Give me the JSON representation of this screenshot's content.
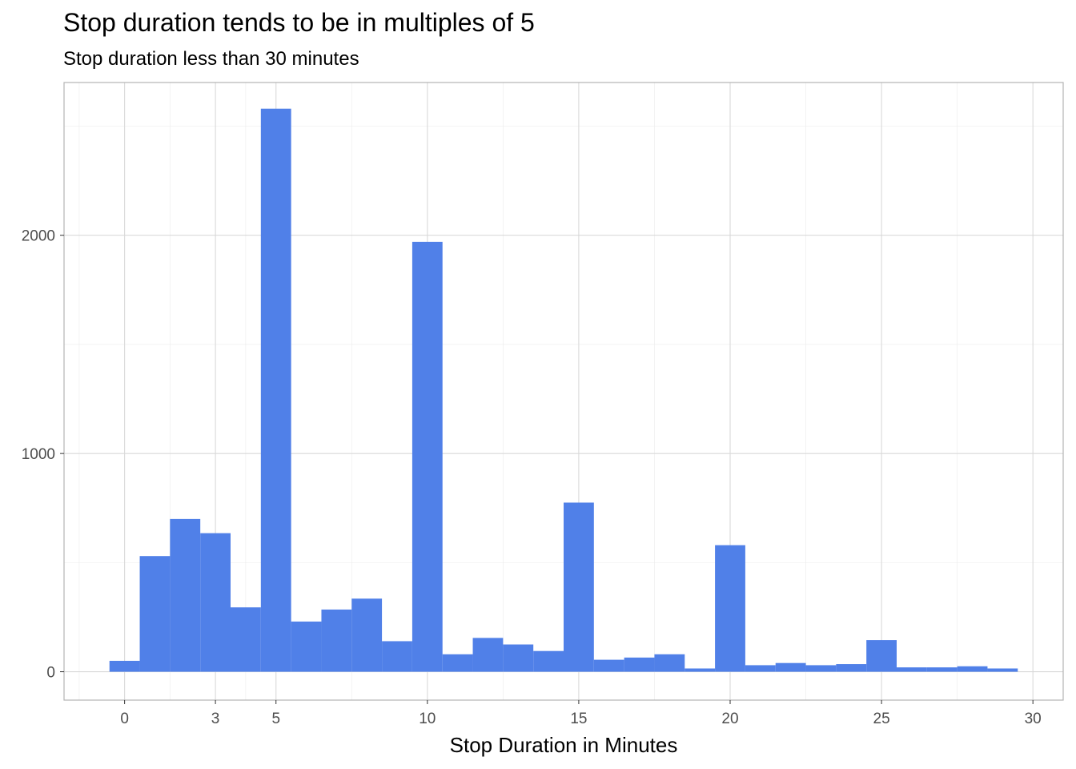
{
  "chart_data": {
    "type": "bar",
    "title": "Stop duration tends to be in multiples of 5",
    "subtitle": "Stop duration less than 30 minutes",
    "xlabel": "Stop Duration in Minutes",
    "ylabel": "",
    "x_ticks": [
      0,
      3,
      5,
      10,
      15,
      20,
      25,
      30
    ],
    "y_ticks": [
      0,
      1000,
      2000
    ],
    "xlim": [
      -2,
      31
    ],
    "ylim": [
      -130,
      2700
    ],
    "grid": true,
    "bar_color": "#5080E8",
    "bins": [
      0,
      1,
      2,
      3,
      4,
      5,
      6,
      7,
      8,
      9,
      10,
      11,
      12,
      13,
      14,
      15,
      16,
      17,
      18,
      19,
      20,
      21,
      22,
      23,
      24,
      25,
      26,
      27,
      28,
      29
    ],
    "values": [
      50,
      530,
      700,
      635,
      295,
      2580,
      230,
      285,
      335,
      140,
      1970,
      80,
      155,
      125,
      95,
      775,
      55,
      65,
      80,
      15,
      580,
      30,
      40,
      30,
      35,
      145,
      20,
      20,
      25,
      15
    ]
  }
}
